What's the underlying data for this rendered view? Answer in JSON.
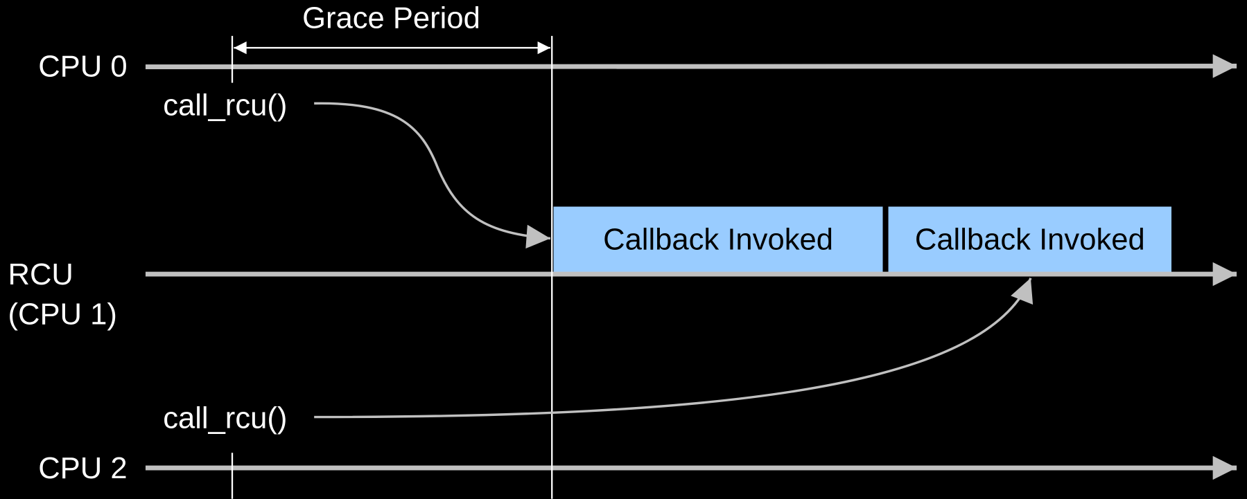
{
  "annotation": "Grace Period",
  "lanes": [
    {
      "label": "CPU 0"
    },
    {
      "label": "RCU",
      "sublabel": "(CPU 1)"
    },
    {
      "label": "CPU 2"
    }
  ],
  "calls": [
    "call_rcu()",
    "call_rcu()"
  ],
  "callbacks": [
    "Callback Invoked",
    "Callback Invoked"
  ]
}
